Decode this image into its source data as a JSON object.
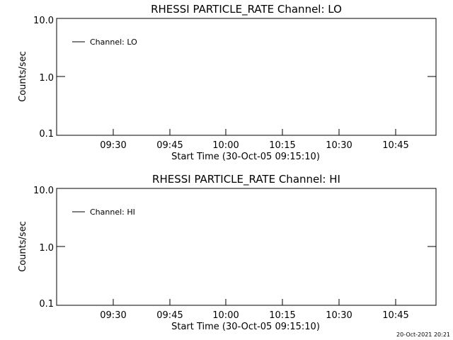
{
  "footer": {
    "timestamp": "20-Oct-2021 20:21"
  },
  "chart_data": [
    {
      "type": "line",
      "title": "RHESSI PARTICLE_RATE Channel: LO",
      "xlabel": "Start Time (30-Oct-05 09:15:10)",
      "ylabel": "Counts/sec",
      "y_scale": "log",
      "ylim": [
        0.1,
        10.0
      ],
      "y_ticks": [
        "0.1",
        "1.0",
        "10.0"
      ],
      "xlim": [
        "09:15:10",
        "10:55:00"
      ],
      "x_ticks": [
        "09:30",
        "09:45",
        "10:00",
        "10:15",
        "10:30",
        "10:45"
      ],
      "grid": false,
      "legend_position": "top-left",
      "series": [
        {
          "name": "Channel: LO",
          "color": "#000000",
          "x": [],
          "y": []
        }
      ]
    },
    {
      "type": "line",
      "title": "RHESSI PARTICLE_RATE Channel: HI",
      "xlabel": "Start Time (30-Oct-05 09:15:10)",
      "ylabel": "Counts/sec",
      "y_scale": "log",
      "ylim": [
        0.1,
        10.0
      ],
      "y_ticks": [
        "0.1",
        "1.0",
        "10.0"
      ],
      "xlim": [
        "09:15:10",
        "10:55:00"
      ],
      "x_ticks": [
        "09:30",
        "09:45",
        "10:00",
        "10:15",
        "10:30",
        "10:45"
      ],
      "grid": false,
      "legend_position": "top-left",
      "series": [
        {
          "name": "Channel: HI",
          "color": "#000000",
          "x": [],
          "y": []
        }
      ]
    }
  ]
}
